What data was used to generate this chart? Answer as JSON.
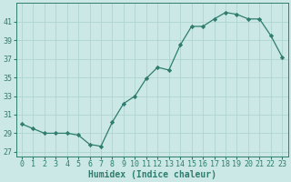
{
  "x": [
    0,
    1,
    2,
    3,
    4,
    5,
    6,
    7,
    8,
    9,
    10,
    11,
    12,
    13,
    14,
    15,
    16,
    17,
    18,
    19,
    20,
    21,
    22,
    23
  ],
  "y": [
    30,
    29.5,
    29,
    29,
    29,
    28.8,
    27.8,
    27.6,
    30.2,
    32.2,
    33,
    34.9,
    36.1,
    35.8,
    38.5,
    40.5,
    40.5,
    41.3,
    42.0,
    41.8,
    41.3,
    41.3,
    39.5,
    37.2
  ],
  "line_color": "#2e7d6e",
  "marker": "D",
  "marker_size": 2.2,
  "bg_color": "#cce8e6",
  "grid_color": "#aed4d1",
  "tick_color": "#2e7d6e",
  "xlabel": "Humidex (Indice chaleur)",
  "xlabel_fontsize": 7,
  "ylabel_ticks": [
    27,
    29,
    31,
    33,
    35,
    37,
    39,
    41
  ],
  "xlim": [
    -0.5,
    23.5
  ],
  "ylim": [
    26.5,
    43.0
  ],
  "xticks": [
    0,
    1,
    2,
    3,
    4,
    5,
    6,
    7,
    8,
    9,
    10,
    11,
    12,
    13,
    14,
    15,
    16,
    17,
    18,
    19,
    20,
    21,
    22,
    23
  ],
  "tick_fontsize": 6.0,
  "linewidth": 0.9
}
